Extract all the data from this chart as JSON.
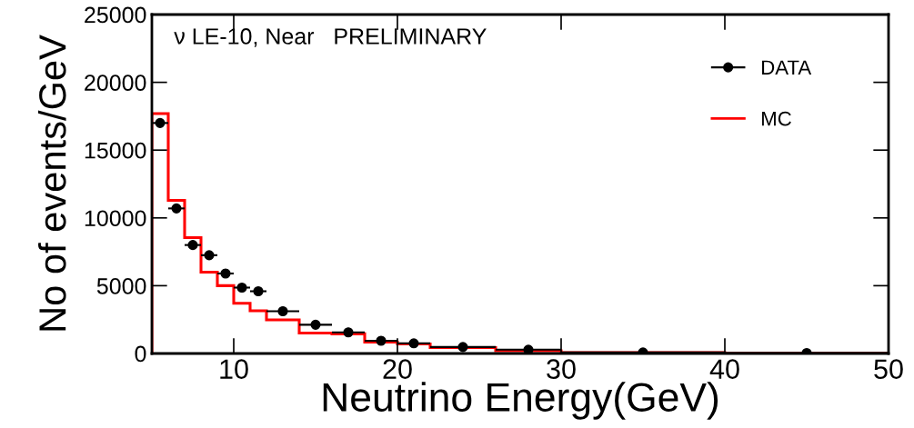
{
  "chart_data": {
    "type": "histogram",
    "xlabel": "Neutrino Energy(GeV)",
    "ylabel": "No of events/GeV",
    "annotations": [
      "ν LE-10, Near   PRELIMINARY"
    ],
    "xlim": [
      5,
      50
    ],
    "ylim": [
      0,
      25000
    ],
    "xticks": [
      10,
      20,
      30,
      40,
      50
    ],
    "yticks": [
      0,
      5000,
      10000,
      15000,
      20000,
      25000
    ],
    "grid": false,
    "legend": "top right",
    "series": [
      {
        "name": "DATA",
        "type": "scatter",
        "color": "#000000",
        "marker": "circle",
        "x": [
          5.5,
          6.5,
          7.5,
          8.5,
          9.5,
          10.5,
          11.5,
          13,
          15,
          17,
          19,
          21,
          24,
          28,
          35,
          45
        ],
        "values": [
          17000,
          10700,
          8000,
          7250,
          5900,
          4860,
          4590,
          3120,
          2120,
          1560,
          940,
          750,
          480,
          280,
          80,
          30
        ],
        "xerrors": [
          0.5,
          0.5,
          0.5,
          0.5,
          0.5,
          0.5,
          0.5,
          1,
          1,
          1,
          1,
          1,
          2,
          2,
          5,
          5
        ]
      },
      {
        "name": "MC",
        "color": "#ff0000",
        "bins": [
          5,
          6,
          7,
          8,
          9,
          10,
          11,
          12,
          14,
          16,
          18,
          20,
          22,
          26,
          30,
          40,
          50
        ],
        "values": [
          17700,
          11300,
          8550,
          6000,
          5000,
          3700,
          3150,
          2480,
          1510,
          1450,
          840,
          710,
          430,
          200,
          70,
          20
        ]
      }
    ]
  }
}
